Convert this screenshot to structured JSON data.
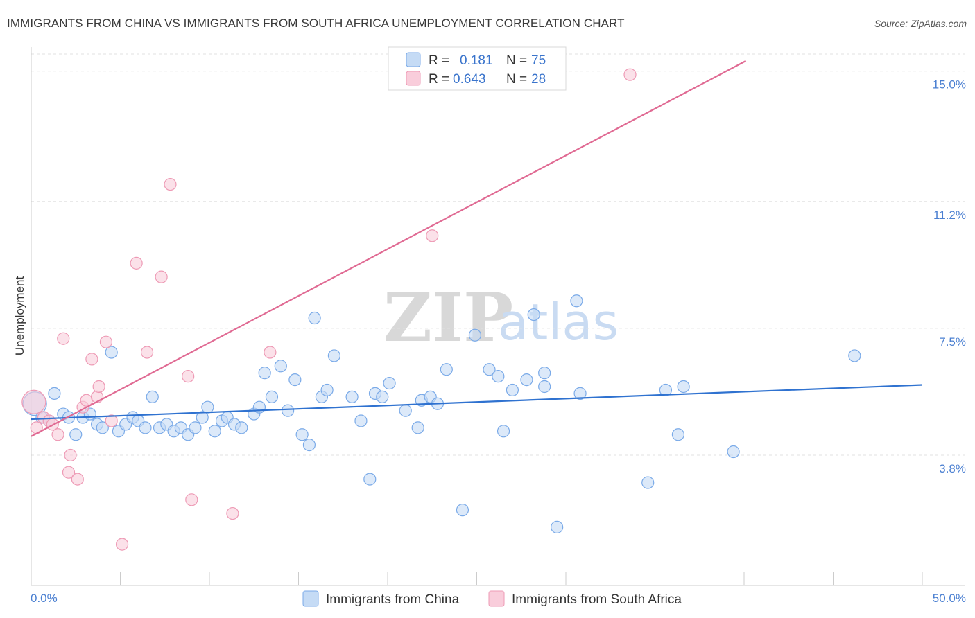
{
  "chart_data": {
    "type": "scatter",
    "title": "IMMIGRANTS FROM CHINA VS IMMIGRANTS FROM SOUTH AFRICA UNEMPLOYMENT CORRELATION CHART",
    "source": "Source: ZipAtlas.com",
    "ylabel": "Unemployment",
    "xlim": [
      0,
      50
    ],
    "ylim": [
      0,
      15.5
    ],
    "x_tick_labels": [
      "0.0%",
      "50.0%"
    ],
    "y_ticks": [
      {
        "value": 15.0,
        "label": "15.0%"
      },
      {
        "value": 11.2,
        "label": "11.2%"
      },
      {
        "value": 7.5,
        "label": "7.5%"
      },
      {
        "value": 3.8,
        "label": "3.8%"
      }
    ],
    "watermark": {
      "part1": "ZIP",
      "part2": "atlas"
    },
    "legend": {
      "r_label": "R =",
      "n_label": "N =",
      "entries": [
        {
          "r": "0.181",
          "n": "75"
        },
        {
          "r": "0.643",
          "n": "28"
        }
      ]
    },
    "series": [
      {
        "name": "Immigrants from China",
        "color": "#7aaae8",
        "fill": "#c5dbf5",
        "line_color": "#2f72d0",
        "trend": {
          "x": [
            0,
            50
          ],
          "y": [
            4.85,
            5.85
          ]
        },
        "points": [
          [
            0.2,
            5.3
          ],
          [
            0.6,
            4.9
          ],
          [
            1.0,
            4.8
          ],
          [
            1.3,
            5.6
          ],
          [
            1.8,
            5.0
          ],
          [
            2.1,
            4.9
          ],
          [
            2.5,
            4.4
          ],
          [
            2.9,
            4.9
          ],
          [
            3.3,
            5.0
          ],
          [
            3.7,
            4.7
          ],
          [
            4.0,
            4.6
          ],
          [
            4.5,
            6.8
          ],
          [
            4.9,
            4.5
          ],
          [
            5.3,
            4.7
          ],
          [
            5.7,
            4.9
          ],
          [
            6.0,
            4.8
          ],
          [
            6.4,
            4.6
          ],
          [
            6.8,
            5.5
          ],
          [
            7.2,
            4.6
          ],
          [
            7.6,
            4.7
          ],
          [
            8.0,
            4.5
          ],
          [
            8.4,
            4.6
          ],
          [
            8.8,
            4.4
          ],
          [
            9.2,
            4.6
          ],
          [
            9.6,
            4.9
          ],
          [
            9.9,
            5.2
          ],
          [
            10.3,
            4.5
          ],
          [
            10.7,
            4.8
          ],
          [
            11.0,
            4.9
          ],
          [
            11.4,
            4.7
          ],
          [
            11.8,
            4.6
          ],
          [
            12.5,
            5.0
          ],
          [
            12.8,
            5.2
          ],
          [
            13.1,
            6.2
          ],
          [
            13.5,
            5.5
          ],
          [
            14.0,
            6.4
          ],
          [
            14.4,
            5.1
          ],
          [
            14.8,
            6.0
          ],
          [
            15.2,
            4.4
          ],
          [
            15.6,
            4.1
          ],
          [
            15.9,
            7.8
          ],
          [
            16.3,
            5.5
          ],
          [
            16.6,
            5.7
          ],
          [
            17.0,
            6.7
          ],
          [
            18.0,
            5.5
          ],
          [
            18.5,
            4.8
          ],
          [
            19.0,
            3.1
          ],
          [
            19.3,
            5.6
          ],
          [
            19.7,
            5.5
          ],
          [
            20.1,
            5.9
          ],
          [
            21.0,
            5.1
          ],
          [
            21.7,
            4.6
          ],
          [
            21.9,
            5.4
          ],
          [
            22.4,
            5.5
          ],
          [
            22.8,
            5.3
          ],
          [
            23.3,
            6.3
          ],
          [
            24.2,
            2.2
          ],
          [
            24.9,
            7.3
          ],
          [
            25.7,
            6.3
          ],
          [
            26.2,
            6.1
          ],
          [
            26.5,
            4.5
          ],
          [
            27.0,
            5.7
          ],
          [
            27.8,
            6.0
          ],
          [
            28.2,
            7.9
          ],
          [
            28.8,
            6.2
          ],
          [
            28.8,
            5.8
          ],
          [
            29.5,
            1.7
          ],
          [
            30.6,
            8.3
          ],
          [
            30.8,
            5.6
          ],
          [
            34.6,
            3.0
          ],
          [
            35.6,
            5.7
          ],
          [
            36.3,
            4.4
          ],
          [
            36.6,
            5.8
          ],
          [
            39.4,
            3.9
          ],
          [
            46.2,
            6.7
          ]
        ]
      },
      {
        "name": "Immigrants from South Africa",
        "color": "#ee9ab5",
        "fill": "#f9cddb",
        "line_color": "#e06a93",
        "trend": {
          "x": [
            0,
            40.1
          ],
          "y": [
            4.35,
            15.3
          ]
        },
        "points": [
          [
            0.3,
            4.6
          ],
          [
            0.7,
            4.9
          ],
          [
            1.0,
            4.8
          ],
          [
            1.2,
            4.7
          ],
          [
            1.5,
            4.4
          ],
          [
            1.8,
            7.2
          ],
          [
            2.2,
            3.8
          ],
          [
            2.1,
            3.3
          ],
          [
            2.6,
            3.1
          ],
          [
            2.9,
            5.2
          ],
          [
            3.1,
            5.4
          ],
          [
            3.4,
            6.6
          ],
          [
            3.7,
            5.5
          ],
          [
            3.8,
            5.8
          ],
          [
            4.2,
            7.1
          ],
          [
            4.5,
            4.8
          ],
          [
            5.1,
            1.2
          ],
          [
            5.9,
            9.4
          ],
          [
            6.5,
            6.8
          ],
          [
            7.3,
            9.0
          ],
          [
            7.8,
            11.7
          ],
          [
            8.8,
            6.1
          ],
          [
            9.0,
            2.5
          ],
          [
            11.3,
            2.1
          ],
          [
            13.4,
            6.8
          ],
          [
            22.5,
            10.2
          ],
          [
            33.6,
            14.9
          ],
          [
            0.15,
            5.35
          ]
        ]
      }
    ]
  }
}
